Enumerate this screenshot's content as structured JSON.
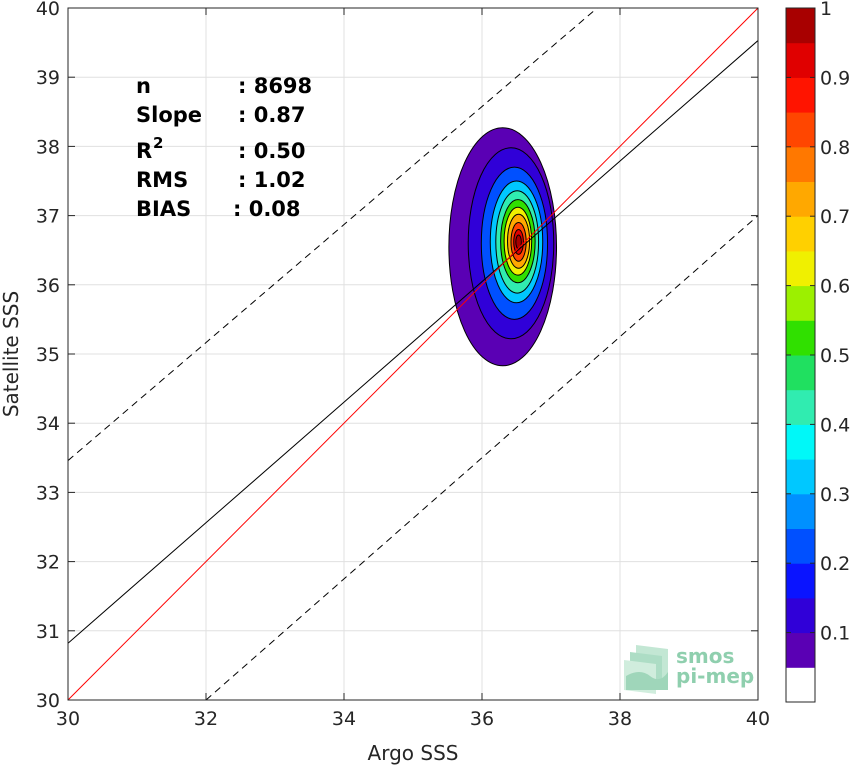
{
  "chart_data": {
    "type": "scatter",
    "subtype": "density-contour",
    "xlabel": "Argo SSS",
    "ylabel": "Satellite SSS",
    "xlim": [
      30,
      40
    ],
    "ylim": [
      30,
      40
    ],
    "xticks": [
      "30",
      "32",
      "34",
      "36",
      "38",
      "40"
    ],
    "yticks": [
      "30",
      "31",
      "32",
      "33",
      "34",
      "35",
      "36",
      "37",
      "38",
      "39",
      "40"
    ],
    "grid": true,
    "stats": {
      "n_label": "n",
      "n_value": ": 8698",
      "slope_label": "Slope",
      "slope_value": ": 0.87",
      "r2_label": "R",
      "r2_sup": "2",
      "r2_value": ": 0.50",
      "rms_label": "RMS",
      "rms_value": ": 1.02",
      "bias_label": "BIAS",
      "bias_value": ": 0.08"
    },
    "lines": {
      "identity": {
        "color": "#ff0000",
        "x": [
          30,
          40
        ],
        "y": [
          30,
          40
        ]
      },
      "regression": {
        "color": "#000000",
        "slope": 0.87,
        "x": [
          30,
          40
        ],
        "y": [
          30.82,
          39.53
        ]
      },
      "upper_bound": {
        "style": "dashed",
        "x": [
          30,
          37.67
        ],
        "y": [
          33.46,
          40
        ]
      },
      "lower_bound": {
        "style": "dashed",
        "x": [
          32.0,
          40
        ],
        "y": [
          30,
          37.0
        ]
      }
    },
    "density": {
      "center": [
        36.52,
        36.62
      ],
      "levels": [
        0.05,
        0.1,
        0.15,
        0.2,
        0.25,
        0.3,
        0.35,
        0.4,
        0.45,
        0.5,
        0.55,
        0.6,
        0.65,
        0.7,
        0.75,
        0.8,
        0.85,
        0.9,
        0.95,
        1.0
      ],
      "contours": [
        {
          "level": 0.05,
          "cx": 36.3,
          "cy": 36.55,
          "rx": 0.78,
          "ry": 1.72
        },
        {
          "level": 0.1,
          "cx": 36.42,
          "cy": 36.6,
          "rx": 0.62,
          "ry": 1.38
        },
        {
          "level": 0.2,
          "cx": 36.47,
          "cy": 36.6,
          "rx": 0.48,
          "ry": 1.1
        },
        {
          "level": 0.3,
          "cx": 36.5,
          "cy": 36.62,
          "rx": 0.38,
          "ry": 0.88
        },
        {
          "level": 0.4,
          "cx": 36.51,
          "cy": 36.62,
          "rx": 0.31,
          "ry": 0.74
        },
        {
          "level": 0.5,
          "cx": 36.52,
          "cy": 36.63,
          "rx": 0.25,
          "ry": 0.6
        },
        {
          "level": 0.6,
          "cx": 36.52,
          "cy": 36.63,
          "rx": 0.2,
          "ry": 0.49
        },
        {
          "level": 0.7,
          "cx": 36.53,
          "cy": 36.63,
          "rx": 0.16,
          "ry": 0.39
        },
        {
          "level": 0.8,
          "cx": 36.53,
          "cy": 36.62,
          "rx": 0.11,
          "ry": 0.28
        },
        {
          "level": 0.9,
          "cx": 36.53,
          "cy": 36.62,
          "rx": 0.07,
          "ry": 0.18
        },
        {
          "level": 0.95,
          "cx": 36.53,
          "cy": 36.62,
          "rx": 0.04,
          "ry": 0.1
        }
      ]
    },
    "colorbar": {
      "tick_labels": [
        "0.1",
        "0.2",
        "0.3",
        "0.4",
        "0.5",
        "0.6",
        "0.7",
        "0.8",
        "0.9",
        "1"
      ],
      "tick_values": [
        0.1,
        0.2,
        0.3,
        0.4,
        0.5,
        0.6,
        0.7,
        0.8,
        0.9,
        1.0
      ],
      "colors": [
        "#ffffff",
        "#5a00b4",
        "#3000d8",
        "#0a14ff",
        "#0050ff",
        "#0090ff",
        "#00c8ff",
        "#00f8f8",
        "#30ecb0",
        "#20e060",
        "#30e000",
        "#9cf000",
        "#f0f000",
        "#ffd000",
        "#ffa800",
        "#ff7800",
        "#ff4600",
        "#ff1400",
        "#e00000",
        "#a80000"
      ]
    }
  },
  "logo": {
    "line1": "smos",
    "line2": "pi-mep",
    "color": "#8fcfae"
  }
}
